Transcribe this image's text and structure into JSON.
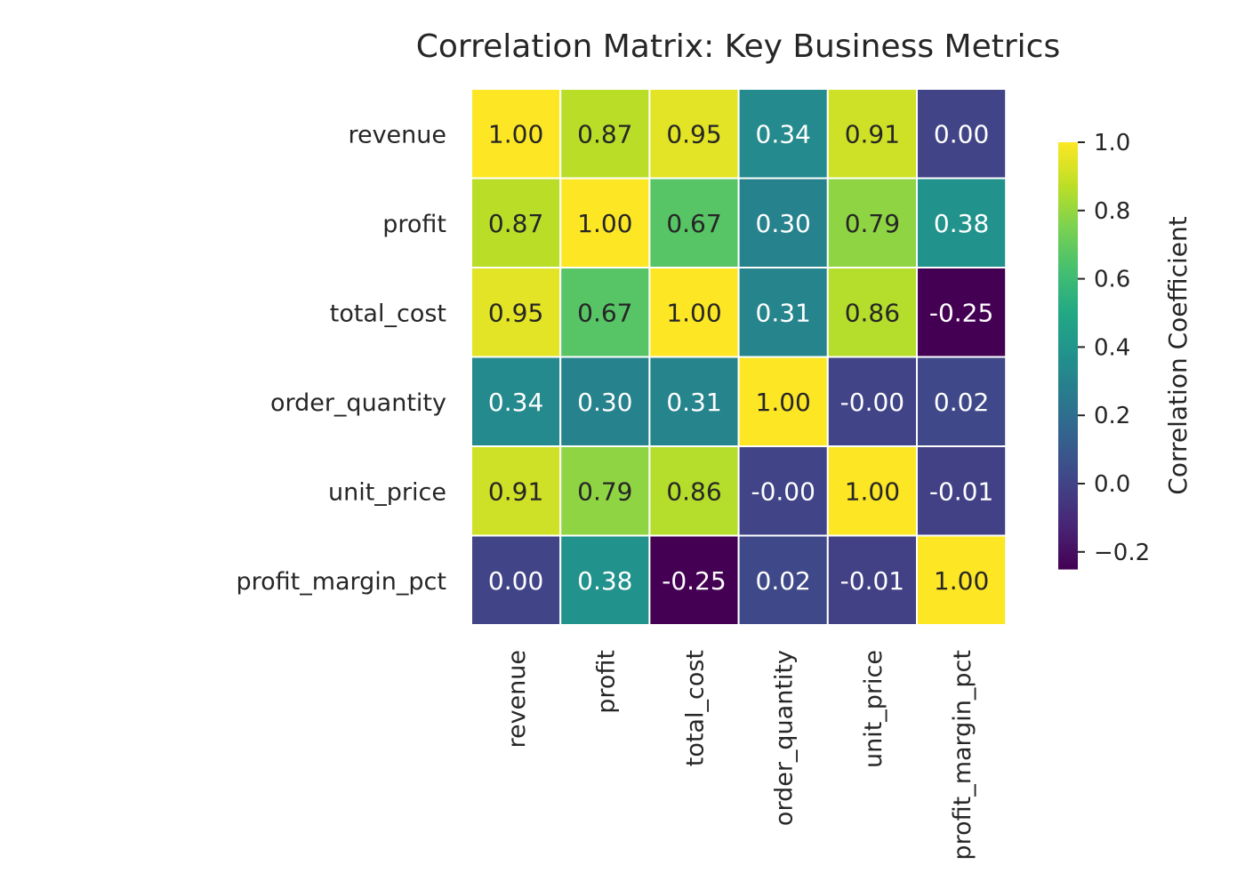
{
  "chart_data": {
    "type": "heatmap",
    "title": "Correlation Matrix: Key Business Metrics",
    "rows": [
      "revenue",
      "profit",
      "total_cost",
      "order_quantity",
      "unit_price",
      "profit_margin_pct"
    ],
    "columns": [
      "revenue",
      "profit",
      "total_cost",
      "order_quantity",
      "unit_price",
      "profit_margin_pct"
    ],
    "values": [
      [
        1.0,
        0.87,
        0.95,
        0.34,
        0.91,
        0.0
      ],
      [
        0.87,
        1.0,
        0.67,
        0.3,
        0.79,
        0.38
      ],
      [
        0.95,
        0.67,
        1.0,
        0.31,
        0.86,
        -0.25
      ],
      [
        0.34,
        0.3,
        0.31,
        1.0,
        -0.0,
        0.02
      ],
      [
        0.91,
        0.79,
        0.86,
        -0.0,
        1.0,
        -0.01
      ],
      [
        0.0,
        0.38,
        -0.25,
        0.02,
        -0.01,
        1.0
      ]
    ],
    "cell_labels": [
      [
        "1.00",
        "0.87",
        "0.95",
        "0.34",
        "0.91",
        "0.00"
      ],
      [
        "0.87",
        "1.00",
        "0.67",
        "0.30",
        "0.79",
        "0.38"
      ],
      [
        "0.95",
        "0.67",
        "1.00",
        "0.31",
        "0.86",
        "-0.25"
      ],
      [
        "0.34",
        "0.30",
        "0.31",
        "1.00",
        "-0.00",
        "0.02"
      ],
      [
        "0.91",
        "0.79",
        "0.86",
        "-0.00",
        "1.00",
        "-0.01"
      ],
      [
        "0.00",
        "0.38",
        "-0.25",
        "0.02",
        "-0.01",
        "1.00"
      ]
    ],
    "colormap": "viridis",
    "vmin": -0.25,
    "vmax": 1.0,
    "colorbar": {
      "label": "Correlation Coefficient",
      "ticks": [
        1.0,
        0.8,
        0.6,
        0.4,
        0.2,
        0.0,
        -0.2
      ],
      "tick_labels": [
        "1.0",
        "0.8",
        "0.6",
        "0.4",
        "0.2",
        "0.0",
        "−0.2"
      ],
      "placement": "right"
    },
    "grid": false
  }
}
